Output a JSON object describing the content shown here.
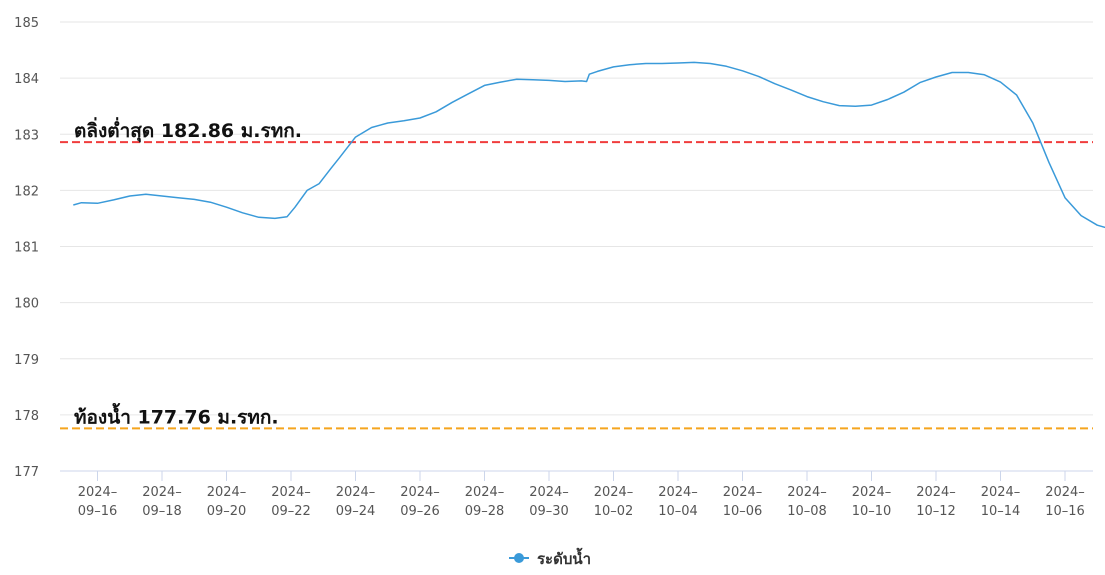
{
  "chart_data": {
    "type": "line",
    "ylim": [
      177,
      185
    ],
    "y_ticks": [
      "177",
      "178",
      "179",
      "180",
      "181",
      "182",
      "183",
      "184",
      "185"
    ],
    "x_range": [
      "2024-09-15",
      "2024-10-17"
    ],
    "x_ticks": [
      {
        "date": "2024-09-16",
        "line1": "2024–",
        "line2": "09–16"
      },
      {
        "date": "2024-09-18",
        "line1": "2024–",
        "line2": "09–18"
      },
      {
        "date": "2024-09-20",
        "line1": "2024–",
        "line2": "09–20"
      },
      {
        "date": "2024-09-22",
        "line1": "2024–",
        "line2": "09–22"
      },
      {
        "date": "2024-09-24",
        "line1": "2024–",
        "line2": "09–24"
      },
      {
        "date": "2024-09-26",
        "line1": "2024–",
        "line2": "09–26"
      },
      {
        "date": "2024-09-28",
        "line1": "2024–",
        "line2": "09–28"
      },
      {
        "date": "2024-09-30",
        "line1": "2024–",
        "line2": "09–30"
      },
      {
        "date": "2024-10-02",
        "line1": "2024–",
        "line2": "10–02"
      },
      {
        "date": "2024-10-04",
        "line1": "2024–",
        "line2": "10–04"
      },
      {
        "date": "2024-10-06",
        "line1": "2024–",
        "line2": "10–06"
      },
      {
        "date": "2024-10-08",
        "line1": "2024–",
        "line2": "10–08"
      },
      {
        "date": "2024-10-10",
        "line1": "2024–",
        "line2": "10–10"
      },
      {
        "date": "2024-10-12",
        "line1": "2024–",
        "line2": "10–12"
      },
      {
        "date": "2024-10-14",
        "line1": "2024–",
        "line2": "10–14"
      },
      {
        "date": "2024-10-16",
        "line1": "2024–",
        "line2": "10–16"
      }
    ],
    "series": [
      {
        "name": "ระดับน้ำ",
        "color": "#3a9ad9",
        "points": [
          [
            "2024-09-15T06:00",
            181.74
          ],
          [
            "2024-09-15T12:00",
            181.78
          ],
          [
            "2024-09-16T00:00",
            181.77
          ],
          [
            "2024-09-16T12:00",
            181.83
          ],
          [
            "2024-09-17T00:00",
            181.9
          ],
          [
            "2024-09-17T12:00",
            181.93
          ],
          [
            "2024-09-18T00:00",
            181.9
          ],
          [
            "2024-09-18T12:00",
            181.87
          ],
          [
            "2024-09-19T00:00",
            181.84
          ],
          [
            "2024-09-19T12:00",
            181.79
          ],
          [
            "2024-09-20T00:00",
            181.7
          ],
          [
            "2024-09-20T12:00",
            181.6
          ],
          [
            "2024-09-21T00:00",
            181.52
          ],
          [
            "2024-09-21T12:00",
            181.5
          ],
          [
            "2024-09-21T21:00",
            181.53
          ],
          [
            "2024-09-22T03:00",
            181.7
          ],
          [
            "2024-09-22T12:00",
            182.0
          ],
          [
            "2024-09-22T21:00",
            182.12
          ],
          [
            "2024-09-23T06:00",
            182.4
          ],
          [
            "2024-09-23T12:00",
            182.58
          ],
          [
            "2024-09-24T00:00",
            182.95
          ],
          [
            "2024-09-24T12:00",
            183.12
          ],
          [
            "2024-09-25T00:00",
            183.2
          ],
          [
            "2024-09-25T12:00",
            183.24
          ],
          [
            "2024-09-26T00:00",
            183.29
          ],
          [
            "2024-09-26T12:00",
            183.4
          ],
          [
            "2024-09-27T00:00",
            183.57
          ],
          [
            "2024-09-27T12:00",
            183.72
          ],
          [
            "2024-09-28T00:00",
            183.87
          ],
          [
            "2024-09-28T12:00",
            183.93
          ],
          [
            "2024-09-29T00:00",
            183.98
          ],
          [
            "2024-09-29T12:00",
            183.97
          ],
          [
            "2024-09-30T00:00",
            183.96
          ],
          [
            "2024-09-30T12:00",
            183.94
          ],
          [
            "2024-10-01T00:00",
            183.95
          ],
          [
            "2024-10-01T04:00",
            183.94
          ],
          [
            "2024-10-01T06:00",
            184.07
          ],
          [
            "2024-10-01T12:00",
            184.12
          ],
          [
            "2024-10-02T00:00",
            184.2
          ],
          [
            "2024-10-02T12:00",
            184.24
          ],
          [
            "2024-10-03T00:00",
            184.26
          ],
          [
            "2024-10-03T12:00",
            184.26
          ],
          [
            "2024-10-04T00:00",
            184.27
          ],
          [
            "2024-10-04T12:00",
            184.28
          ],
          [
            "2024-10-05T00:00",
            184.26
          ],
          [
            "2024-10-05T12:00",
            184.21
          ],
          [
            "2024-10-06T00:00",
            184.13
          ],
          [
            "2024-10-06T12:00",
            184.03
          ],
          [
            "2024-10-07T00:00",
            183.9
          ],
          [
            "2024-10-07T12:00",
            183.79
          ],
          [
            "2024-10-08T00:00",
            183.67
          ],
          [
            "2024-10-08T12:00",
            183.58
          ],
          [
            "2024-10-09T00:00",
            183.51
          ],
          [
            "2024-10-09T12:00",
            183.5
          ],
          [
            "2024-10-10T00:00",
            183.52
          ],
          [
            "2024-10-10T12:00",
            183.62
          ],
          [
            "2024-10-11T00:00",
            183.75
          ],
          [
            "2024-10-11T12:00",
            183.92
          ],
          [
            "2024-10-12T00:00",
            184.02
          ],
          [
            "2024-10-12T12:00",
            184.1
          ],
          [
            "2024-10-13T00:00",
            184.1
          ],
          [
            "2024-10-13T12:00",
            184.06
          ],
          [
            "2024-10-14T00:00",
            183.93
          ],
          [
            "2024-10-14T12:00",
            183.7
          ],
          [
            "2024-10-15T00:00",
            183.2
          ],
          [
            "2024-10-15T12:00",
            182.5
          ],
          [
            "2024-10-16T00:00",
            181.87
          ],
          [
            "2024-10-16T12:00",
            181.55
          ],
          [
            "2024-10-17T00:00",
            181.38
          ],
          [
            "2024-10-17T12:00",
            181.3
          ],
          [
            "2024-10-17T20:00",
            181.27
          ]
        ]
      }
    ],
    "reference_lines": [
      {
        "label": "ตลิ่งต่ำสุด 182.86 ม.รทก.",
        "value": 182.86,
        "color": "#f03c3c",
        "style": "dashed"
      },
      {
        "label": "ท้องน้ำ 177.76 ม.รทก.",
        "value": 177.76,
        "color": "#f5a51e",
        "style": "dashed"
      }
    ],
    "grid": "horizontal",
    "legend": {
      "position": "bottom-center",
      "items": [
        "ระดับน้ำ"
      ]
    }
  }
}
